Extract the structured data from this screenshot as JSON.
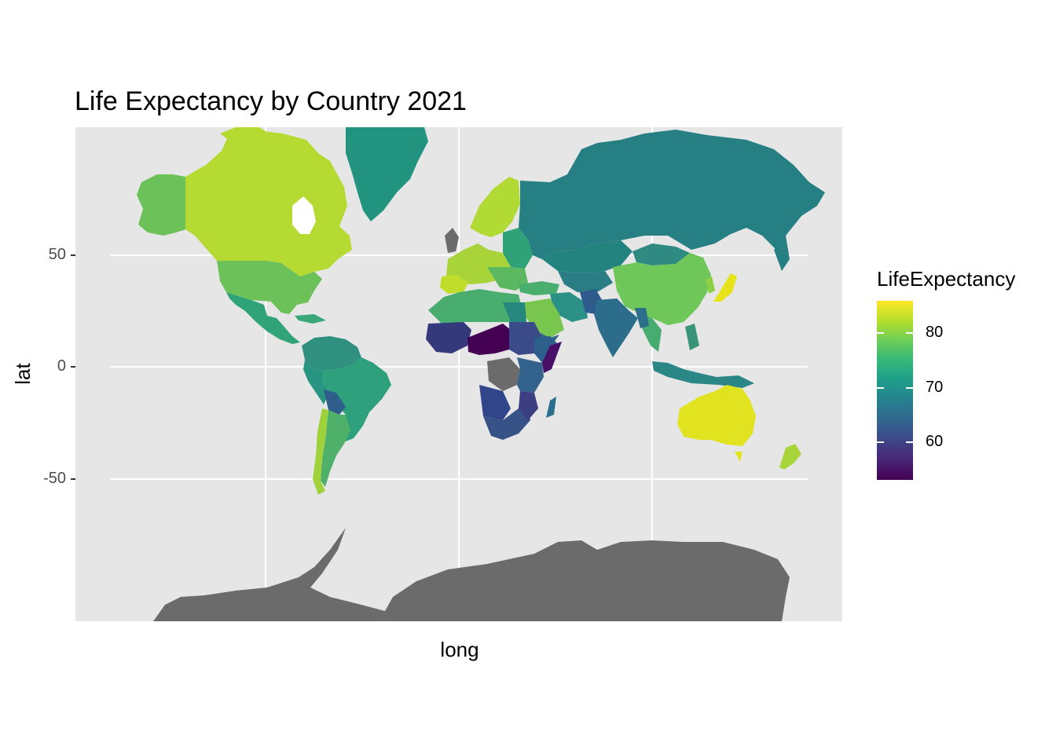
{
  "title": "Life Expectancy by Country 2021",
  "xlabel": "long",
  "ylabel": "lat",
  "y_ticks": [
    "50",
    "0",
    "-50"
  ],
  "legend": {
    "title": "LifeExpectancy",
    "ticks": [
      "80",
      "70",
      "60"
    ],
    "tick_values": [
      80,
      70,
      60
    ],
    "range": [
      52.5,
      86
    ],
    "colors": [
      "#fde725",
      "#b5de2b",
      "#6ece58",
      "#35b779",
      "#1f9e89",
      "#26828e",
      "#31688e",
      "#3e4989",
      "#482878",
      "#440154"
    ]
  },
  "colors": {
    "panel": "#e6e6e6",
    "grid": "#ffffff",
    "no_data": "#6b6b6b"
  },
  "chart_data": {
    "type": "map",
    "title": "Life Expectancy by Country 2021",
    "xlabel": "long",
    "ylabel": "lat",
    "y_ticks": [
      50,
      0,
      -50
    ],
    "fill": "LifeExpectancy",
    "regions": [
      {
        "region": "Canada",
        "value": 82
      },
      {
        "region": "USA",
        "value": 77
      },
      {
        "region": "Alaska",
        "value": 77
      },
      {
        "region": "Greenland",
        "value": 71
      },
      {
        "region": "Mexico",
        "value": 70
      },
      {
        "region": "Brazil",
        "value": 73
      },
      {
        "region": "Argentina",
        "value": 75
      },
      {
        "region": "Chile",
        "value": 79
      },
      {
        "region": "Bolivia",
        "value": 64
      },
      {
        "region": "Russia",
        "value": 69
      },
      {
        "region": "China",
        "value": 78
      },
      {
        "region": "India",
        "value": 67
      },
      {
        "region": "Pakistan",
        "value": 66
      },
      {
        "region": "Japan",
        "value": 85
      },
      {
        "region": "Australia",
        "value": 84
      },
      {
        "region": "New Zealand",
        "value": 82
      },
      {
        "region": "Sweden",
        "value": 83
      },
      {
        "region": "Norway",
        "value": 83
      },
      {
        "region": "Finland",
        "value": 82
      },
      {
        "region": "France",
        "value": 82
      },
      {
        "region": "Spain",
        "value": 83
      },
      {
        "region": "Algeria",
        "value": 76
      },
      {
        "region": "Egypt",
        "value": 70
      },
      {
        "region": "Saudi Arabia",
        "value": 77
      },
      {
        "region": "Chad",
        "value": 53
      },
      {
        "region": "Nigeria",
        "value": 53
      },
      {
        "region": "Ethiopia",
        "value": 65
      },
      {
        "region": "Angola",
        "value": 62
      },
      {
        "region": "South Africa",
        "value": 62
      },
      {
        "region": "Madagascar",
        "value": 65
      },
      {
        "region": "Indonesia",
        "value": 68
      },
      {
        "region": "Kazakhstan",
        "value": 69
      },
      {
        "region": "Dem. Rep. Congo",
        "value": null
      },
      {
        "region": "Antarctica",
        "value": null
      }
    ]
  }
}
